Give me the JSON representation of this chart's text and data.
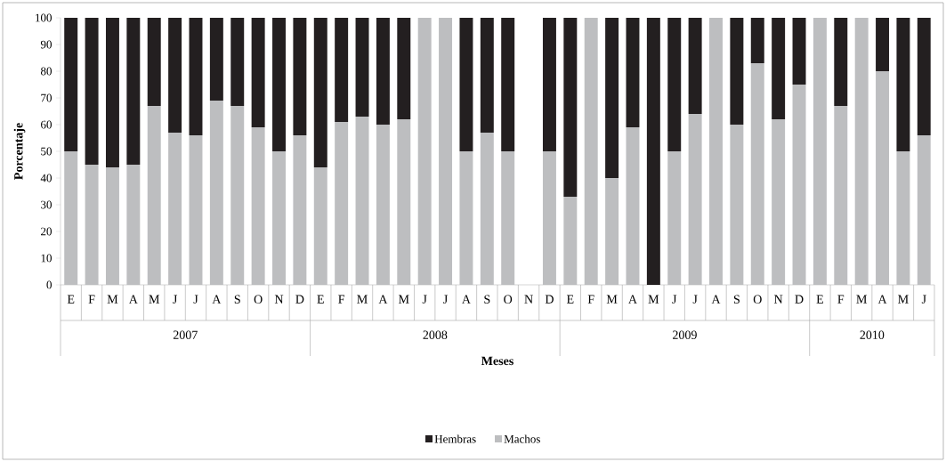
{
  "chart_data": {
    "type": "bar",
    "stacked": true,
    "xlabel": "Meses",
    "ylabel": "Porcentaje",
    "categories": [
      "E",
      "F",
      "M",
      "A",
      "M",
      "J",
      "J",
      "A",
      "S",
      "O",
      "N",
      "D",
      "E",
      "F",
      "M",
      "A",
      "M",
      "J",
      "J",
      "A",
      "S",
      "O",
      "N",
      "D",
      "E",
      "F",
      "M",
      "A",
      "M",
      "J",
      "J",
      "A",
      "S",
      "O",
      "N",
      "D",
      "E",
      "F",
      "M",
      "A",
      "M",
      "J"
    ],
    "series": [
      {
        "name": "Machos",
        "color": "#bdbec0",
        "values": [
          50,
          45,
          44,
          45,
          67,
          57,
          56,
          69,
          67,
          59,
          50,
          56,
          44,
          61,
          63,
          60,
          62,
          100,
          100,
          50,
          57,
          50,
          null,
          50,
          33,
          100,
          40,
          59,
          0,
          50,
          64,
          100,
          60,
          83,
          62,
          75,
          100,
          67,
          100,
          80,
          50,
          56
        ]
      },
      {
        "name": "Hembras",
        "color": "#231f20",
        "values": [
          50,
          55,
          56,
          55,
          33,
          43,
          44,
          31,
          33,
          41,
          50,
          44,
          56,
          39,
          37,
          40,
          38,
          0,
          0,
          50,
          43,
          50,
          null,
          50,
          67,
          0,
          60,
          41,
          100,
          50,
          36,
          0,
          40,
          17,
          38,
          25,
          0,
          33,
          0,
          20,
          50,
          44
        ]
      }
    ],
    "annotations": [
      "2007",
      "2008",
      "2009",
      "2010"
    ],
    "ylim": [
      0,
      100
    ],
    "yticks": [
      0,
      10,
      20,
      30,
      40,
      50,
      60,
      70,
      80,
      90,
      100
    ],
    "legend": "bottom"
  }
}
